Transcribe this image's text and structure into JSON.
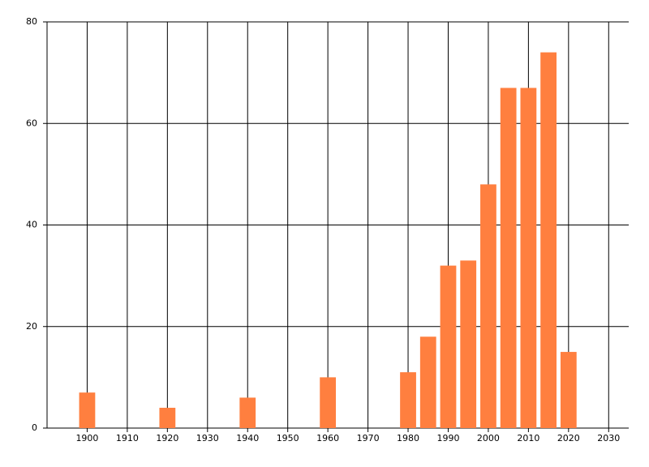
{
  "chart_data": {
    "type": "bar",
    "x": [
      1900,
      1920,
      1940,
      1960,
      1980,
      1985,
      1990,
      1995,
      2000,
      2005,
      2010,
      2015,
      2020
    ],
    "values": [
      7,
      4,
      6,
      10,
      11,
      18,
      32,
      33,
      48,
      67,
      67,
      74,
      15
    ],
    "color": "#ff7f3f",
    "xlim": [
      1890,
      2035
    ],
    "xticks": [
      1900,
      1910,
      1920,
      1930,
      1940,
      1950,
      1960,
      1970,
      1980,
      1990,
      2000,
      2010,
      2020,
      2030
    ],
    "ylim": [
      0,
      80
    ],
    "yticks": [
      0,
      20,
      40,
      60,
      80
    ],
    "grid": true
  }
}
